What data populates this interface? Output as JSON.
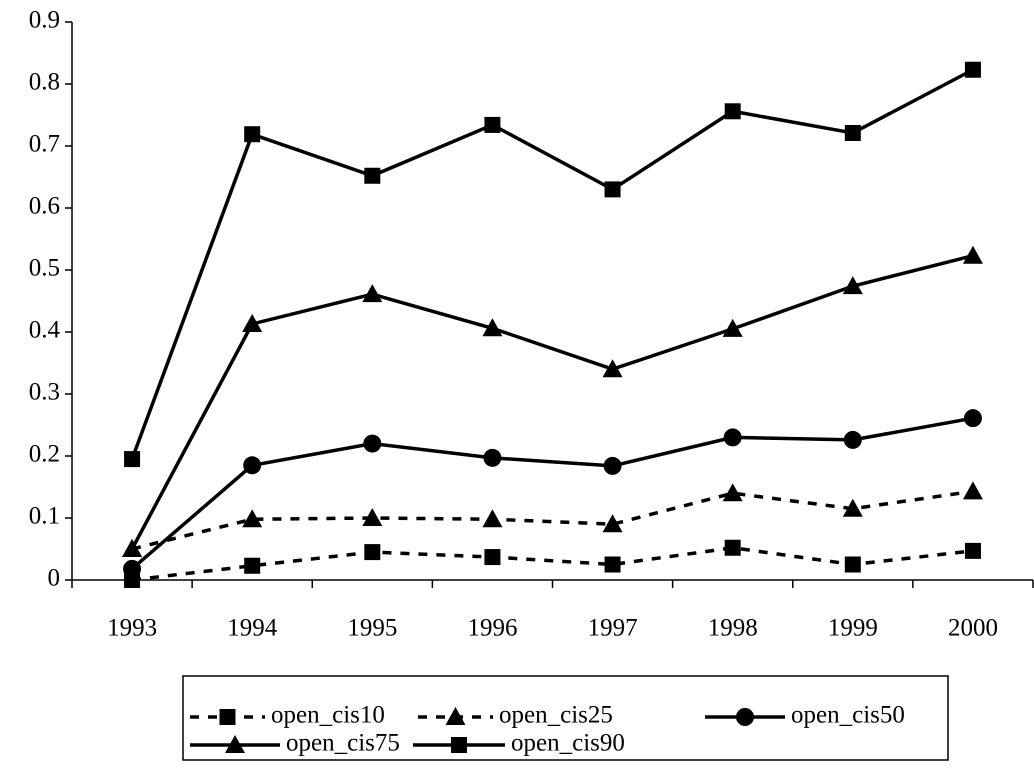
{
  "chart_data": {
    "type": "line",
    "categories": [
      "1993",
      "1994",
      "1995",
      "1996",
      "1997",
      "1998",
      "1999",
      "2000"
    ],
    "series": [
      {
        "name": "open_cis10",
        "color": "#000000",
        "marker": "square",
        "dashed": true,
        "values": [
          0,
          0.023,
          0.045,
          0.037,
          0.025,
          0.052,
          0.025,
          0.047
        ]
      },
      {
        "name": "open_cis25",
        "color": "#000000",
        "marker": "triangle",
        "dashed": true,
        "values": [
          0.05,
          0.098,
          0.1,
          0.098,
          0.09,
          0.14,
          0.115,
          0.143
        ]
      },
      {
        "name": "open_cis50",
        "color": "#000000",
        "marker": "circle",
        "dashed": false,
        "values": [
          0.018,
          0.185,
          0.22,
          0.197,
          0.184,
          0.23,
          0.226,
          0.261
        ]
      },
      {
        "name": "open_cis75",
        "color": "#000000",
        "marker": "triangle",
        "dashed": false,
        "values": [
          0.05,
          0.413,
          0.461,
          0.406,
          0.34,
          0.405,
          0.474,
          0.523
        ]
      },
      {
        "name": "open_cis90",
        "color": "#000000",
        "marker": "square",
        "dashed": false,
        "values": [
          0.195,
          0.719,
          0.652,
          0.734,
          0.63,
          0.756,
          0.721,
          0.823
        ]
      }
    ],
    "ylim": [
      0,
      0.9
    ],
    "yticks": [
      0,
      0.1,
      0.2,
      0.3,
      0.4,
      0.5,
      0.6,
      0.7,
      0.8,
      0.9
    ],
    "grid": false,
    "legend": "bottom"
  }
}
